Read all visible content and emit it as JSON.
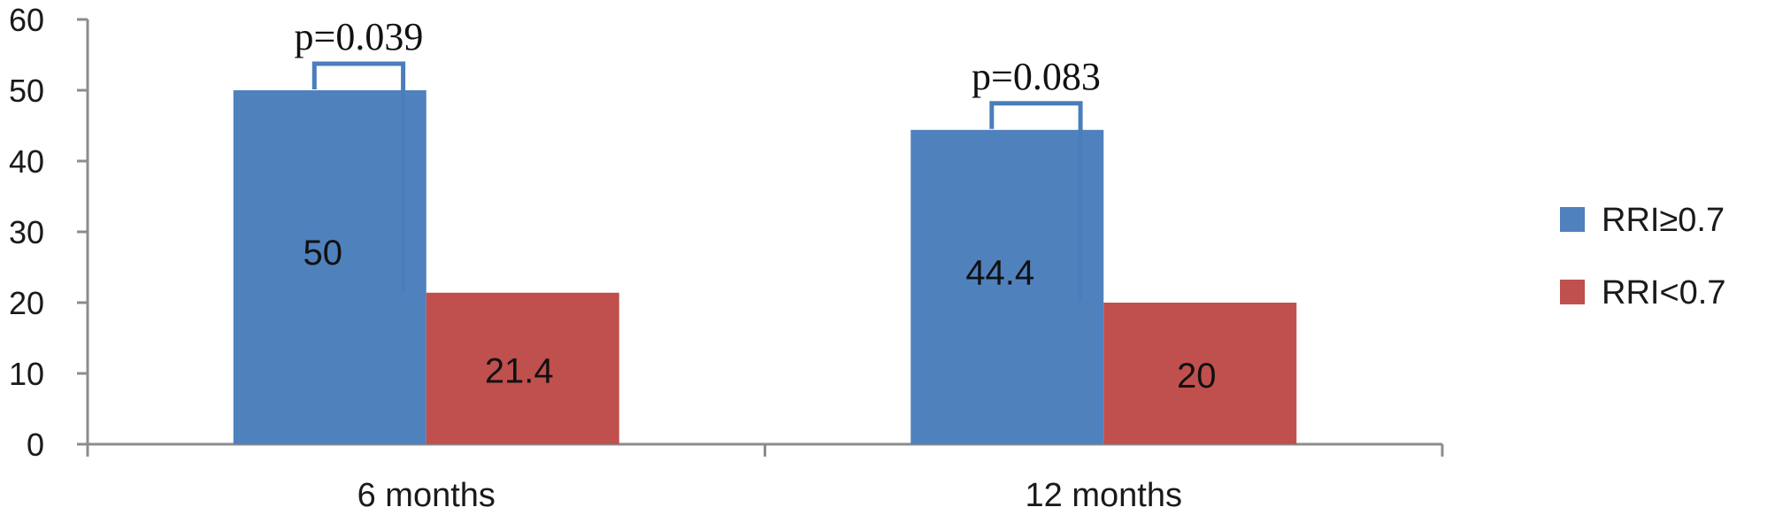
{
  "chart_data": {
    "type": "bar",
    "categories": [
      "6 months",
      "12 months"
    ],
    "series": [
      {
        "name": "RRI≥0.7",
        "values": [
          50,
          44.4
        ],
        "color": "#4f81bd"
      },
      {
        "name": "RRI<0.7",
        "values": [
          21.4,
          20
        ],
        "color": "#c0504d"
      }
    ],
    "data_labels": [
      [
        "50",
        "44.4"
      ],
      [
        "21.4",
        "20"
      ]
    ],
    "annotations": [
      "p=0.039",
      "p=0.083"
    ],
    "bracket_color": "#4a7ebb",
    "yticks": [
      "0",
      "10",
      "20",
      "30",
      "40",
      "50",
      "60"
    ],
    "ylim": [
      0,
      60
    ],
    "grid": false,
    "legend_position": "right",
    "title": "",
    "xlabel": "",
    "ylabel": ""
  }
}
